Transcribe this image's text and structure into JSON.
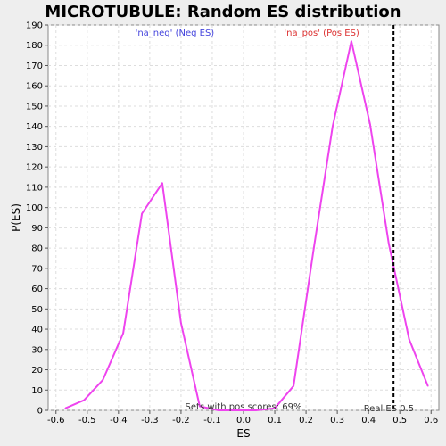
{
  "chart_data": {
    "type": "line",
    "title": "MICROTUBULE: Random ES distribution",
    "xlabel": "ES",
    "ylabel": "P(ES)",
    "xlim": [
      -0.625,
      0.625
    ],
    "ylim": [
      0,
      190
    ],
    "x_ticks": [
      -0.6,
      -0.5,
      -0.4,
      -0.3,
      -0.2,
      -0.1,
      0.0,
      0.1,
      0.2,
      0.3,
      0.4,
      0.5,
      0.6
    ],
    "x_tick_labels": [
      "-0.6",
      "-0.5",
      "-0.4",
      "-0.3",
      "-0.2",
      "-0.1",
      "0.0",
      "0.1",
      "0.2",
      "0.3",
      "0.4",
      "0.5",
      "0.6"
    ],
    "y_ticks": [
      0,
      10,
      20,
      30,
      40,
      50,
      60,
      70,
      80,
      90,
      100,
      110,
      120,
      130,
      140,
      150,
      160,
      170,
      180,
      190
    ],
    "grid": true,
    "series": [
      {
        "color": "#ee44ee",
        "x": [
          -0.57,
          -0.51,
          -0.45,
          -0.385,
          -0.325,
          -0.26,
          -0.2,
          -0.14,
          -0.08,
          -0.02,
          0.04,
          0.1,
          0.16,
          0.225,
          0.285,
          0.345,
          0.405,
          0.465,
          0.53,
          0.59
        ],
        "y": [
          1,
          5,
          15,
          38,
          97,
          112,
          43,
          2,
          0,
          0,
          0,
          1,
          12,
          80,
          140,
          182,
          141,
          82,
          35,
          12
        ]
      }
    ],
    "threshold_line": {
      "x": 0.48,
      "style": "dashed",
      "color": "#000000"
    },
    "annotations": {
      "neg_label": "'na_neg' (Neg ES)",
      "neg_color": "#4444dd",
      "pos_label": "'na_pos' (Pos ES)",
      "pos_color": "#dd3333",
      "sets_text": "Sets with pos scores: 69%",
      "real_es_text": "Real ES 0.5"
    }
  }
}
